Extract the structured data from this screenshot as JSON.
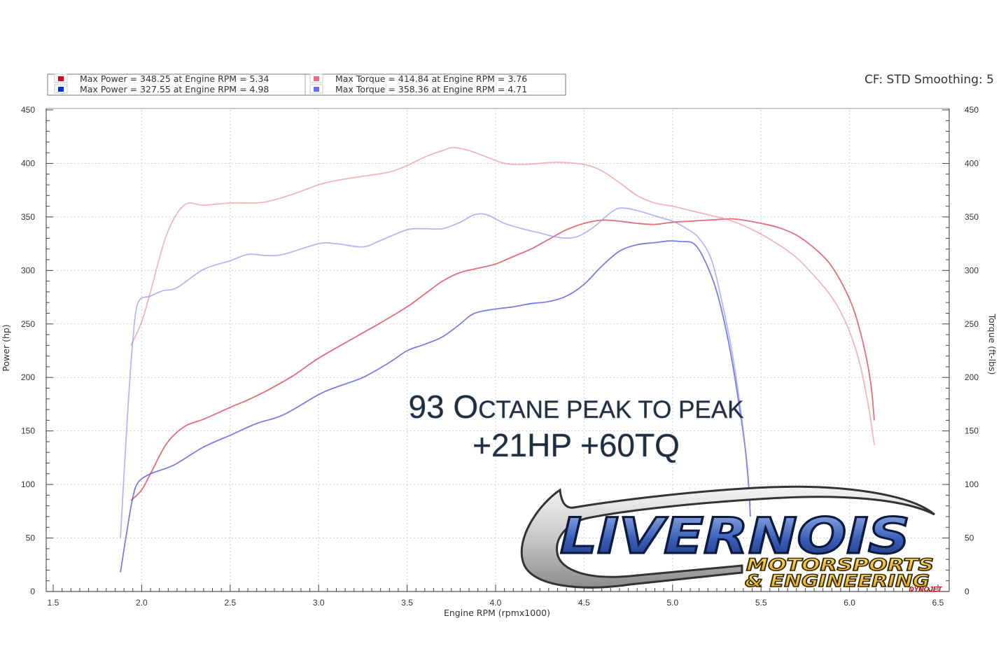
{
  "header": {
    "right_text": "CF: STD Smoothing: 5"
  },
  "legend": [
    {
      "color": "#e0001b",
      "text": "Max Power = 348.25 at Engine RPM = 5.34"
    },
    {
      "color": "#0033dd",
      "text": "Max Power = 327.55 at Engine RPM = 4.98"
    },
    {
      "color": "#f06a80",
      "text": "Max Torque = 414.84 at Engine RPM = 3.76"
    },
    {
      "color": "#6a6ef0",
      "text": "Max Torque = 358.36 at Engine RPM = 4.71"
    }
  ],
  "annotation": {
    "line1": "93 Octane peak to peak",
    "line2": "+21HP +60TQ"
  },
  "logo": {
    "main": "LIVERNOIS",
    "sub1": "MOTORSPORTS",
    "sub2": "& ENGINEERING",
    "badge": "DYNOJET"
  },
  "chart_data": {
    "type": "line",
    "xlabel": "Engine RPM (rpmx1000)",
    "ylabel_left": "Power (hp)",
    "ylabel_right": "Torque (ft-lbs)",
    "xlim": [
      1.5,
      6.5
    ],
    "ylim": [
      0,
      450
    ],
    "xticks": [
      "1.5",
      "2.0",
      "2.5",
      "3.0",
      "3.5",
      "4.0",
      "4.5",
      "5.0",
      "5.5",
      "6.0",
      "6.5"
    ],
    "yticks": [
      "0",
      "50",
      "100",
      "150",
      "200",
      "250",
      "300",
      "350",
      "400",
      "450"
    ],
    "grid": true,
    "series": [
      {
        "color": "#e03a4e",
        "opacity": 0.75,
        "points": [
          [
            1.94,
            85
          ],
          [
            2.0,
            95
          ],
          [
            2.05,
            110
          ],
          [
            2.14,
            138
          ],
          [
            2.24,
            154
          ],
          [
            2.35,
            161
          ],
          [
            2.5,
            172
          ],
          [
            2.6,
            179
          ],
          [
            2.7,
            187
          ],
          [
            2.85,
            201
          ],
          [
            3.0,
            218
          ],
          [
            3.2,
            237
          ],
          [
            3.35,
            251
          ],
          [
            3.5,
            266
          ],
          [
            3.6,
            278
          ],
          [
            3.7,
            290
          ],
          [
            3.8,
            298
          ],
          [
            3.9,
            302
          ],
          [
            4.0,
            306
          ],
          [
            4.1,
            313
          ],
          [
            4.2,
            320
          ],
          [
            4.3,
            329
          ],
          [
            4.4,
            338
          ],
          [
            4.5,
            344
          ],
          [
            4.6,
            347
          ],
          [
            4.7,
            346
          ],
          [
            4.8,
            344
          ],
          [
            4.9,
            343
          ],
          [
            5.0,
            345
          ],
          [
            5.1,
            346
          ],
          [
            5.2,
            347
          ],
          [
            5.3,
            348
          ],
          [
            5.34,
            348.25
          ],
          [
            5.4,
            347
          ],
          [
            5.5,
            344
          ],
          [
            5.6,
            340
          ],
          [
            5.7,
            333
          ],
          [
            5.8,
            321
          ],
          [
            5.88,
            308
          ],
          [
            5.95,
            290
          ],
          [
            6.02,
            265
          ],
          [
            6.08,
            230
          ],
          [
            6.12,
            195
          ],
          [
            6.14,
            160
          ]
        ]
      },
      {
        "color": "#4c52dc",
        "opacity": 0.75,
        "points": [
          [
            1.88,
            18
          ],
          [
            1.92,
            60
          ],
          [
            1.95,
            88
          ],
          [
            1.98,
            102
          ],
          [
            2.05,
            110
          ],
          [
            2.18,
            118
          ],
          [
            2.35,
            135
          ],
          [
            2.5,
            146
          ],
          [
            2.65,
            157
          ],
          [
            2.8,
            165
          ],
          [
            3.0,
            184
          ],
          [
            3.1,
            191
          ],
          [
            3.25,
            200
          ],
          [
            3.4,
            214
          ],
          [
            3.5,
            225
          ],
          [
            3.6,
            231
          ],
          [
            3.7,
            238
          ],
          [
            3.8,
            250
          ],
          [
            3.85,
            257
          ],
          [
            3.9,
            261
          ],
          [
            4.0,
            264
          ],
          [
            4.1,
            266
          ],
          [
            4.2,
            269
          ],
          [
            4.3,
            271
          ],
          [
            4.4,
            276
          ],
          [
            4.5,
            287
          ],
          [
            4.6,
            304
          ],
          [
            4.7,
            318
          ],
          [
            4.8,
            324
          ],
          [
            4.9,
            326
          ],
          [
            4.98,
            327.55
          ],
          [
            5.05,
            327
          ],
          [
            5.12,
            325
          ],
          [
            5.18,
            310
          ],
          [
            5.25,
            280
          ],
          [
            5.32,
            230
          ],
          [
            5.38,
            170
          ],
          [
            5.42,
            120
          ],
          [
            5.44,
            70
          ]
        ]
      },
      {
        "color": "#f08a98",
        "opacity": 0.65,
        "points": [
          [
            1.94,
            230
          ],
          [
            2.0,
            252
          ],
          [
            2.05,
            280
          ],
          [
            2.14,
            333
          ],
          [
            2.24,
            361
          ],
          [
            2.35,
            361
          ],
          [
            2.5,
            363
          ],
          [
            2.6,
            363
          ],
          [
            2.7,
            364
          ],
          [
            2.85,
            371
          ],
          [
            3.0,
            380
          ],
          [
            3.1,
            384
          ],
          [
            3.25,
            388
          ],
          [
            3.4,
            392
          ],
          [
            3.5,
            398
          ],
          [
            3.6,
            406
          ],
          [
            3.7,
            412
          ],
          [
            3.76,
            414.84
          ],
          [
            3.85,
            412
          ],
          [
            3.95,
            406
          ],
          [
            4.05,
            400
          ],
          [
            4.15,
            399
          ],
          [
            4.25,
            400
          ],
          [
            4.35,
            401
          ],
          [
            4.5,
            399
          ],
          [
            4.6,
            393
          ],
          [
            4.7,
            382
          ],
          [
            4.8,
            370
          ],
          [
            4.9,
            363
          ],
          [
            5.0,
            360
          ],
          [
            5.1,
            356
          ],
          [
            5.2,
            352
          ],
          [
            5.3,
            348
          ],
          [
            5.4,
            342
          ],
          [
            5.5,
            334
          ],
          [
            5.6,
            324
          ],
          [
            5.7,
            312
          ],
          [
            5.8,
            295
          ],
          [
            5.9,
            275
          ],
          [
            5.98,
            251
          ],
          [
            6.05,
            218
          ],
          [
            6.1,
            180
          ],
          [
            6.14,
            137
          ]
        ]
      },
      {
        "color": "#8d8ff0",
        "opacity": 0.65,
        "points": [
          [
            1.88,
            50
          ],
          [
            1.92,
            165
          ],
          [
            1.95,
            235
          ],
          [
            1.98,
            270
          ],
          [
            2.05,
            276
          ],
          [
            2.12,
            281
          ],
          [
            2.2,
            284
          ],
          [
            2.35,
            301
          ],
          [
            2.5,
            309
          ],
          [
            2.6,
            315
          ],
          [
            2.7,
            314
          ],
          [
            2.8,
            315
          ],
          [
            3.0,
            325
          ],
          [
            3.1,
            325
          ],
          [
            3.25,
            322
          ],
          [
            3.35,
            328
          ],
          [
            3.5,
            338
          ],
          [
            3.6,
            339
          ],
          [
            3.7,
            339
          ],
          [
            3.8,
            345
          ],
          [
            3.88,
            352
          ],
          [
            3.95,
            352
          ],
          [
            4.05,
            344
          ],
          [
            4.15,
            339
          ],
          [
            4.25,
            335
          ],
          [
            4.35,
            331
          ],
          [
            4.45,
            331
          ],
          [
            4.55,
            340
          ],
          [
            4.65,
            354
          ],
          [
            4.71,
            358.36
          ],
          [
            4.8,
            356
          ],
          [
            4.9,
            351
          ],
          [
            5.0,
            346
          ],
          [
            5.08,
            339
          ],
          [
            5.15,
            330
          ],
          [
            5.22,
            310
          ],
          [
            5.28,
            270
          ],
          [
            5.34,
            220
          ],
          [
            5.4,
            150
          ],
          [
            5.44,
            80
          ]
        ]
      }
    ]
  }
}
